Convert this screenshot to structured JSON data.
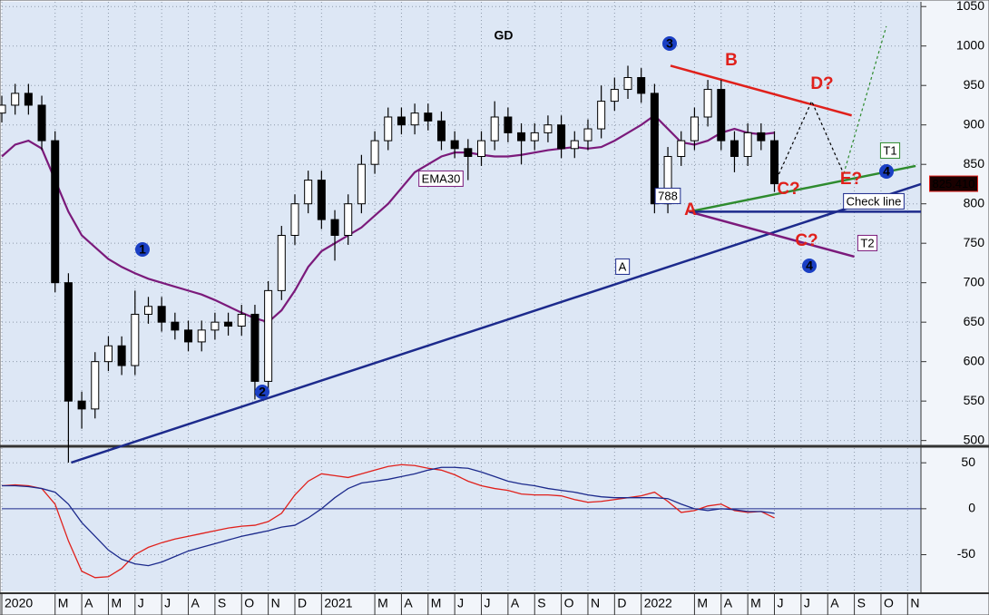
{
  "chart_data": [
    {
      "type": "candlestick",
      "title": "GD",
      "x": [
        0,
        0.5,
        1,
        1.5,
        2,
        2.5,
        3,
        3.5,
        4,
        4.5,
        5,
        5.5,
        6,
        6.5,
        7,
        7.5,
        8,
        8.5,
        9,
        9.5,
        10,
        10.5,
        11,
        11.5,
        12,
        12.5,
        13,
        13.5,
        14,
        14.5,
        15,
        15.5,
        16,
        16.5,
        17,
        17.5,
        18,
        18.5,
        19,
        19.5,
        20,
        20.5,
        21,
        21.5,
        22,
        22.5,
        23,
        23.5,
        24,
        24.5,
        25,
        25.5,
        26,
        26.5,
        27,
        27.5,
        28,
        28.5,
        29
      ],
      "open": [
        915,
        925,
        940,
        925,
        880,
        700,
        550,
        540,
        600,
        620,
        595,
        660,
        670,
        650,
        640,
        625,
        640,
        650,
        645,
        660,
        575,
        690,
        760,
        800,
        830,
        780,
        760,
        800,
        850,
        880,
        910,
        900,
        915,
        905,
        880,
        870,
        860,
        880,
        910,
        890,
        880,
        890,
        900,
        870,
        880,
        895,
        930,
        945,
        960,
        940,
        800,
        860,
        880,
        910,
        945,
        880,
        860,
        890,
        880
      ],
      "high": [
        937,
        952,
        952,
        937,
        892,
        712,
        562,
        612,
        632,
        632,
        690,
        682,
        682,
        662,
        652,
        652,
        662,
        662,
        672,
        672,
        702,
        772,
        812,
        842,
        842,
        792,
        812,
        862,
        892,
        922,
        922,
        927,
        927,
        917,
        892,
        882,
        892,
        930,
        922,
        902,
        902,
        912,
        912,
        892,
        907,
        950,
        960,
        975,
        972,
        952,
        872,
        892,
        922,
        957,
        957,
        892,
        902,
        902,
        892
      ],
      "low": [
        903,
        913,
        913,
        868,
        688,
        472,
        515,
        528,
        588,
        583,
        583,
        648,
        638,
        628,
        613,
        613,
        628,
        633,
        633,
        552,
        563,
        678,
        748,
        788,
        768,
        728,
        748,
        788,
        838,
        868,
        888,
        888,
        893,
        868,
        858,
        830,
        848,
        868,
        878,
        850,
        868,
        878,
        858,
        858,
        868,
        883,
        918,
        933,
        928,
        788,
        788,
        848,
        868,
        898,
        868,
        840,
        848,
        868,
        815
      ],
      "close": [
        925,
        940,
        925,
        880,
        700,
        550,
        540,
        600,
        620,
        595,
        660,
        670,
        650,
        640,
        625,
        640,
        650,
        645,
        660,
        575,
        690,
        760,
        800,
        830,
        780,
        760,
        800,
        850,
        880,
        910,
        900,
        915,
        905,
        880,
        870,
        860,
        880,
        910,
        890,
        880,
        890,
        900,
        870,
        880,
        895,
        930,
        945,
        960,
        940,
        800,
        860,
        880,
        910,
        945,
        880,
        860,
        890,
        880,
        825.41
      ],
      "series": [
        {
          "name": "EMA30",
          "color": "#7b1a7b",
          "values": [
            860,
            875,
            880,
            870,
            830,
            790,
            760,
            745,
            730,
            720,
            712,
            705,
            700,
            695,
            690,
            685,
            678,
            670,
            662,
            655,
            650,
            665,
            690,
            720,
            740,
            750,
            760,
            770,
            785,
            800,
            820,
            840,
            850,
            860,
            865,
            865,
            862,
            860,
            860,
            862,
            865,
            868,
            870,
            872,
            870,
            872,
            880,
            890,
            900,
            912,
            895,
            878,
            875,
            880,
            890,
            895,
            890,
            888,
            890
          ]
        }
      ],
      "trendlines": [
        {
          "name": "A",
          "color": "#1c2a8c",
          "x": [
            2.6,
            34.5
          ],
          "y": [
            472,
            825
          ]
        },
        {
          "color": "#e0201b",
          "x": [
            25.1,
            31.9
          ],
          "y": [
            975,
            912
          ]
        },
        {
          "name": "T1",
          "color": "#2e8b2e",
          "x": [
            25.8,
            34.3
          ],
          "y": [
            790,
            848
          ]
        },
        {
          "name": "T2",
          "color": "#7b1a7b",
          "x": [
            25.8,
            32
          ],
          "y": [
            790,
            733
          ]
        },
        {
          "name": "Check line",
          "color": "#1c2a8c",
          "x": [
            25.8,
            34.5
          ],
          "y": [
            790,
            790
          ]
        },
        {
          "color": "#000000",
          "style": "dashed",
          "x": [
            29,
            30.4,
            31.6
          ],
          "y": [
            825,
            930,
            838
          ]
        },
        {
          "color": "#2e8b2e",
          "style": "dashed",
          "x": [
            31.6,
            33.2
          ],
          "y": [
            838,
            1025
          ]
        }
      ],
      "annotations": [
        "B",
        "D?",
        "E?",
        "C?",
        "C?",
        "A",
        788,
        "1",
        "2",
        "3",
        "4",
        "4"
      ],
      "last_price_label": "825.410",
      "xlim": [
        0,
        34.5
      ],
      "ylim": [
        495,
        1056
      ],
      "yticks": [
        500,
        550,
        600,
        650,
        700,
        750,
        800,
        850,
        900,
        950,
        1000,
        1050
      ],
      "xticks": [
        {
          "value": 0,
          "label": "2020"
        },
        {
          "value": 2,
          "label": "M"
        },
        {
          "value": 3,
          "label": "A"
        },
        {
          "value": 4,
          "label": "M"
        },
        {
          "value": 5,
          "label": "J"
        },
        {
          "value": 6,
          "label": "J"
        },
        {
          "value": 7,
          "label": "A"
        },
        {
          "value": 8,
          "label": "S"
        },
        {
          "value": 9,
          "label": "O"
        },
        {
          "value": 10,
          "label": "N"
        },
        {
          "value": 11,
          "label": "D"
        },
        {
          "value": 12,
          "label": "2021"
        },
        {
          "value": 14,
          "label": "M"
        },
        {
          "value": 15,
          "label": "A"
        },
        {
          "value": 16,
          "label": "M"
        },
        {
          "value": 17,
          "label": "J"
        },
        {
          "value": 18,
          "label": "J"
        },
        {
          "value": 19,
          "label": "A"
        },
        {
          "value": 20,
          "label": "S"
        },
        {
          "value": 21,
          "label": "O"
        },
        {
          "value": 22,
          "label": "N"
        },
        {
          "value": 23,
          "label": "D"
        },
        {
          "value": 24,
          "label": "2022"
        },
        {
          "value": 26,
          "label": "M"
        },
        {
          "value": 27,
          "label": "A"
        },
        {
          "value": 28,
          "label": "M"
        },
        {
          "value": 29,
          "label": "J"
        },
        {
          "value": 30,
          "label": "J"
        },
        {
          "value": 31,
          "label": "A"
        },
        {
          "value": 32,
          "label": "S"
        },
        {
          "value": 33,
          "label": "O"
        },
        {
          "value": 34,
          "label": "N"
        }
      ],
      "grid": true
    },
    {
      "type": "line",
      "x": [
        0,
        0.5,
        1,
        1.5,
        2,
        2.5,
        3,
        3.5,
        4,
        4.5,
        5,
        5.5,
        6,
        6.5,
        7,
        7.5,
        8,
        8.5,
        9,
        9.5,
        10,
        10.5,
        11,
        11.5,
        12,
        12.5,
        13,
        13.5,
        14,
        14.5,
        15,
        15.5,
        16,
        16.5,
        17,
        17.5,
        18,
        18.5,
        19,
        19.5,
        20,
        20.5,
        21,
        21.5,
        22,
        22.5,
        23,
        23.5,
        24,
        24.5,
        25,
        25.5,
        26,
        26.5,
        27,
        27.5,
        28,
        28.5,
        29
      ],
      "series": [
        {
          "color": "#e0201b",
          "values": [
            25,
            26,
            25,
            22,
            5,
            -35,
            -68,
            -75,
            -74,
            -65,
            -50,
            -42,
            -37,
            -33,
            -30,
            -27,
            -24,
            -21,
            -19,
            -18,
            -14,
            -5,
            15,
            30,
            38,
            36,
            34,
            38,
            42,
            46,
            48,
            47,
            44,
            42,
            37,
            30,
            25,
            22,
            20,
            16,
            15,
            15,
            14,
            10,
            7,
            8,
            10,
            12,
            14,
            18,
            8,
            -4,
            -2,
            3,
            5,
            -2,
            -4,
            -3,
            -10
          ]
        },
        {
          "color": "#1c2a8c",
          "values": [
            25,
            25,
            24,
            22,
            18,
            5,
            -15,
            -30,
            -45,
            -55,
            -60,
            -62,
            -58,
            -52,
            -46,
            -42,
            -38,
            -34,
            -30,
            -27,
            -24,
            -20,
            -18,
            -10,
            0,
            12,
            22,
            28,
            30,
            32,
            35,
            38,
            42,
            45,
            45,
            44,
            40,
            35,
            30,
            27,
            25,
            22,
            20,
            18,
            15,
            13,
            12,
            12,
            12,
            12,
            11,
            5,
            0,
            -2,
            0,
            -1,
            -3,
            -3,
            -5
          ]
        }
      ],
      "xlim": [
        0,
        34.5
      ],
      "ylim": [
        -90,
        66
      ],
      "yticks": [
        -50,
        0,
        50
      ],
      "grid": true
    }
  ]
}
